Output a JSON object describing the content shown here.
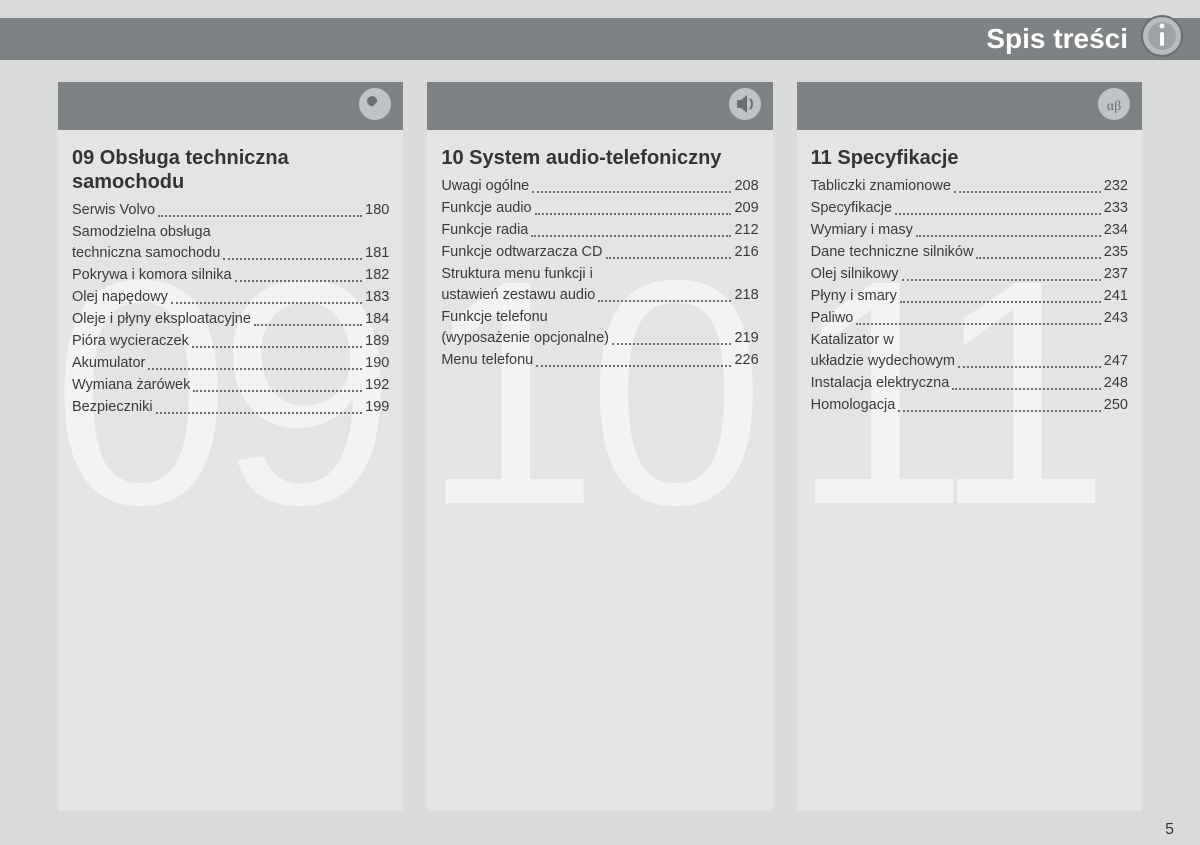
{
  "header": {
    "title": "Spis treści",
    "icon": "info-icon"
  },
  "page_number": "5",
  "watermarks": [
    "09",
    "10",
    "11"
  ],
  "colors": {
    "header_bg": "#7e8284",
    "column_bg": "#e3e4e4",
    "page_bg": "#d9dbdb",
    "text": "#3a3b3d",
    "title_text": "#333437",
    "watermark": "rgba(255,255,255,0.55)"
  },
  "columns": [
    {
      "icon": "wrench-icon",
      "title": "09 Obsługa techniczna samochodu",
      "items": [
        {
          "label": "Serwis Volvo",
          "page": "180"
        },
        {
          "label": "Samodzielna obsługa techniczna samochodu",
          "page": "181"
        },
        {
          "label": "Pokrywa i komora silnika",
          "page": "182"
        },
        {
          "label": "Olej napędowy",
          "page": "183"
        },
        {
          "label": "Oleje i płyny eksploatacyjne",
          "page": "184"
        },
        {
          "label": "Pióra wycieraczek",
          "page": "189"
        },
        {
          "label": "Akumulator",
          "page": "190"
        },
        {
          "label": "Wymiana żarówek",
          "page": "192"
        },
        {
          "label": "Bezpieczniki",
          "page": "199"
        }
      ]
    },
    {
      "icon": "speaker-icon",
      "title": "10 System audio-telefoniczny",
      "items": [
        {
          "label": "Uwagi ogólne",
          "page": "208"
        },
        {
          "label": "Funkcje audio",
          "page": "209"
        },
        {
          "label": "Funkcje radia",
          "page": "212"
        },
        {
          "label": "Funkcje odtwarzacza CD",
          "page": "216"
        },
        {
          "label": "Struktura menu funkcji i ustawień zestawu audio",
          "page": "218"
        },
        {
          "label": "Funkcje telefonu (wyposażenie opcjonalne)",
          "page": "219"
        },
        {
          "label": "Menu telefonu",
          "page": "226"
        }
      ]
    },
    {
      "icon": "alpha-icon",
      "title": "11 Specyfikacje",
      "items": [
        {
          "label": "Tabliczki znamionowe",
          "page": "232"
        },
        {
          "label": "Specyfikacje",
          "page": "233"
        },
        {
          "label": "Wymiary i masy",
          "page": "234"
        },
        {
          "label": "Dane techniczne silników",
          "page": "235"
        },
        {
          "label": "Olej silnikowy",
          "page": "237"
        },
        {
          "label": "Płyny i smary",
          "page": "241"
        },
        {
          "label": "Paliwo",
          "page": "243"
        },
        {
          "label": "Katalizator w układzie wydechowym",
          "page": "247"
        },
        {
          "label": "Instalacja elektryczna",
          "page": "248"
        },
        {
          "label": "Homologacja",
          "page": "250"
        }
      ]
    }
  ]
}
